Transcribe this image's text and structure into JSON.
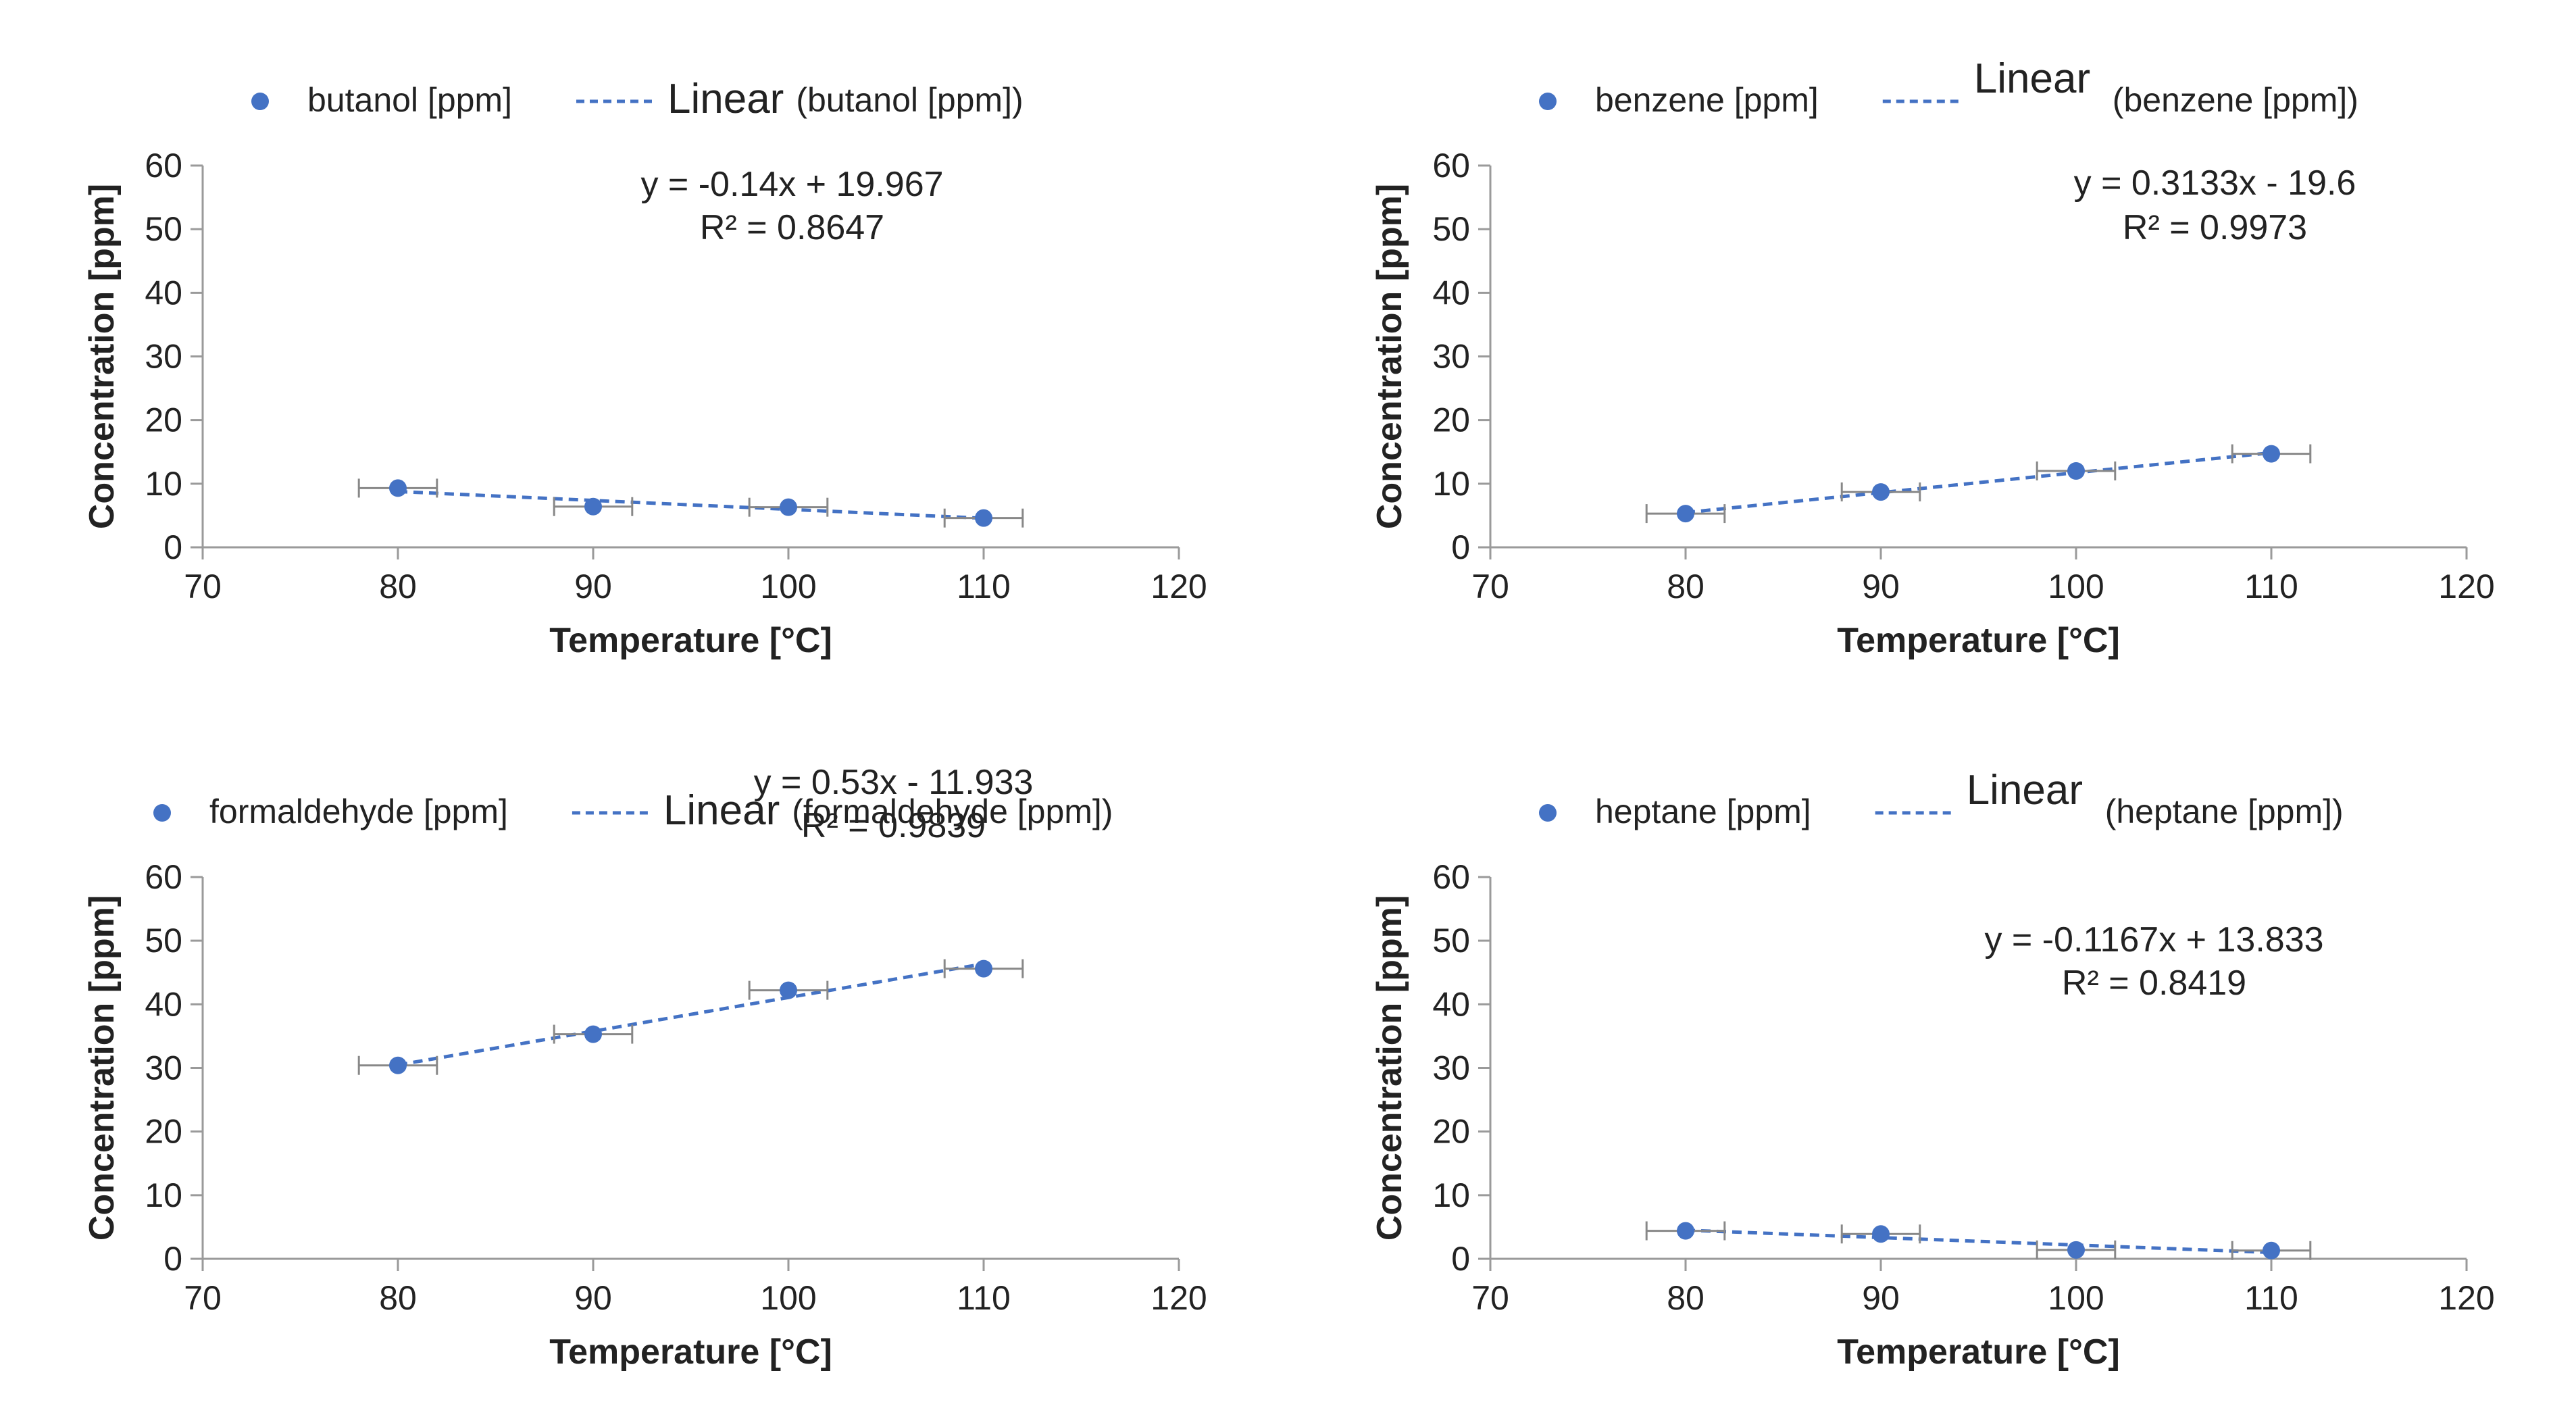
{
  "colors": {
    "series": "#4472C4",
    "axis": "#9a9a9a",
    "text": "#222222",
    "errorbar": "#888888"
  },
  "chart_data": [
    {
      "type": "scatter",
      "title": "",
      "xlabel": "Temperature [°C]",
      "ylabel": "Concentration [ppm]",
      "xlim": [
        70,
        120
      ],
      "ylim": [
        0,
        60
      ],
      "xticks": [
        "70",
        "80",
        "90",
        "100",
        "110",
        "120"
      ],
      "yticks": [
        "0",
        "10",
        "20",
        "30",
        "40",
        "50",
        "60"
      ],
      "legend": {
        "marker_label": "butanol [ppm]",
        "trend_word": "Linear",
        "trend_rest": "(butanol [ppm])",
        "stacked": false
      },
      "series": [
        {
          "name": "butanol [ppm]",
          "x": [
            80,
            90,
            100,
            110
          ],
          "y": [
            9.3,
            6.4,
            6.3,
            4.6
          ],
          "xerr": 2
        }
      ],
      "trendline": {
        "slope": -0.14,
        "intercept": 19.967
      },
      "equation": "y = -0.14x + 19.967",
      "r2": "R² = 0.8647"
    },
    {
      "type": "scatter",
      "title": "",
      "xlabel": "Temperature [°C]",
      "ylabel": "Concentration [ppm]",
      "xlim": [
        70,
        120
      ],
      "ylim": [
        0,
        60
      ],
      "xticks": [
        "70",
        "80",
        "90",
        "100",
        "110",
        "120"
      ],
      "yticks": [
        "0",
        "10",
        "20",
        "30",
        "40",
        "50",
        "60"
      ],
      "legend": {
        "marker_label": "benzene [ppm]",
        "trend_word": "Linear",
        "trend_rest": "(benzene [ppm])",
        "stacked": true
      },
      "series": [
        {
          "name": "benzene [ppm]",
          "x": [
            80,
            90,
            100,
            110
          ],
          "y": [
            5.3,
            8.7,
            12.0,
            14.7
          ],
          "xerr": 2
        }
      ],
      "trendline": {
        "slope": 0.3133,
        "intercept": -19.6
      },
      "equation": "y = 0.3133x - 19.6",
      "r2": "R² = 0.9973"
    },
    {
      "type": "scatter",
      "title": "",
      "xlabel": "Temperature [°C]",
      "ylabel": "Concentration [ppm]",
      "xlim": [
        70,
        120
      ],
      "ylim": [
        0,
        60
      ],
      "xticks": [
        "70",
        "80",
        "90",
        "100",
        "110",
        "120"
      ],
      "yticks": [
        "0",
        "10",
        "20",
        "30",
        "40",
        "50",
        "60"
      ],
      "legend": {
        "marker_label": "formaldehyde [ppm]",
        "trend_word": "Linear",
        "trend_rest": "(formaldehyde [ppm])",
        "stacked": false
      },
      "series": [
        {
          "name": "formaldehyde [ppm]",
          "x": [
            80,
            90,
            100,
            110
          ],
          "y": [
            30.4,
            35.3,
            42.2,
            45.6
          ],
          "xerr": 2
        }
      ],
      "trendline": {
        "slope": 0.53,
        "intercept": -11.933
      },
      "equation": "y = 0.53x - 11.933",
      "r2": "R² = 0.9839"
    },
    {
      "type": "scatter",
      "title": "",
      "xlabel": "Temperature [°C]",
      "ylabel": "Concentration [ppm]",
      "xlim": [
        70,
        120
      ],
      "ylim": [
        0,
        60
      ],
      "xticks": [
        "70",
        "80",
        "90",
        "100",
        "110",
        "120"
      ],
      "yticks": [
        "0",
        "10",
        "20",
        "30",
        "40",
        "50",
        "60"
      ],
      "legend": {
        "marker_label": "heptane [ppm]",
        "trend_word": "Linear",
        "trend_rest": "(heptane [ppm])",
        "stacked": true
      },
      "series": [
        {
          "name": "heptane [ppm]",
          "x": [
            80,
            90,
            100,
            110
          ],
          "y": [
            4.4,
            3.9,
            1.4,
            1.3
          ],
          "xerr": 2
        }
      ],
      "trendline": {
        "slope": -0.1167,
        "intercept": 13.833
      },
      "equation": "y = -0.1167x + 13.833",
      "r2": "R² = 0.8419"
    }
  ]
}
